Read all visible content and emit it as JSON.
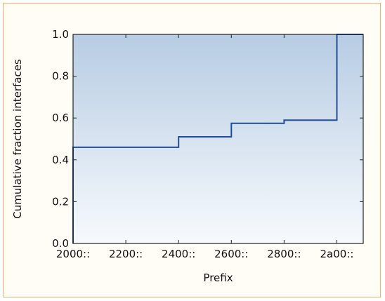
{
  "chart_data": {
    "type": "line",
    "title": "",
    "xlabel": "Prefix",
    "ylabel": "Cumulative fraction interfaces",
    "x_tick_labels": [
      "2000::",
      "2200::",
      "2400::",
      "2600::",
      "2800::",
      "2a00::"
    ],
    "y_tick_labels": [
      "0.0",
      "0.2",
      "0.4",
      "0.6",
      "0.8",
      "1.0"
    ],
    "xlim": [
      "2000::",
      "2b00::"
    ],
    "ylim": [
      0,
      1
    ],
    "grid": false,
    "step_series": {
      "x": [
        "2000::",
        "2000::",
        "2400::",
        "2400::",
        "2600::",
        "2600::",
        "2800::",
        "2800::",
        "2a00::",
        "2a00::",
        "2a00::",
        "2b00::"
      ],
      "y": [
        0.0,
        0.46,
        0.46,
        0.51,
        0.51,
        0.575,
        0.575,
        0.59,
        0.59,
        0.98,
        1.0,
        1.0
      ]
    },
    "colors": {
      "line": "#1f4e9c",
      "plot_bg_top": "#b7cce3",
      "plot_bg_bottom": "#f7fafd"
    }
  }
}
